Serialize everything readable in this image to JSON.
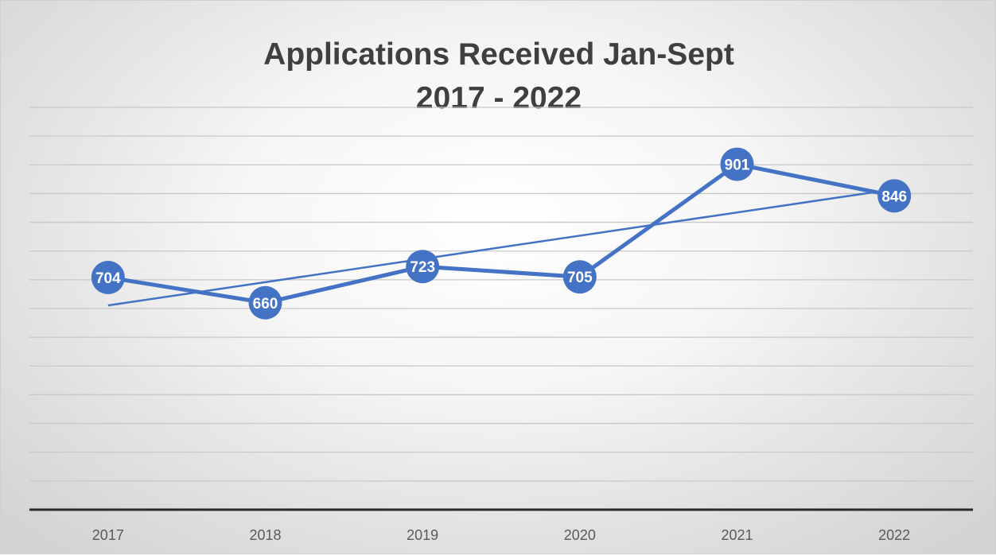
{
  "chart_data": {
    "type": "line",
    "title_lines": [
      "Applications Received Jan-Sept",
      "2017 - 2022"
    ],
    "categories": [
      "2017",
      "2018",
      "2019",
      "2020",
      "2021",
      "2022"
    ],
    "series": [
      {
        "values": [
          704,
          660,
          723,
          705,
          901,
          846
        ],
        "data_labels": true,
        "markers": true
      }
    ],
    "trendline": {
      "type": "linear",
      "of_series": 0
    },
    "ylim": [
      300,
      1000
    ],
    "y_gridline_step": 50,
    "y_axis_labels_shown": false,
    "grid": true,
    "legend": "none",
    "colors": {
      "series": "#4472c4",
      "grid": "#c8c8c8",
      "axis": "#2a2a2a",
      "label_text": "#ffffff",
      "background": "#f2f2f2"
    }
  }
}
